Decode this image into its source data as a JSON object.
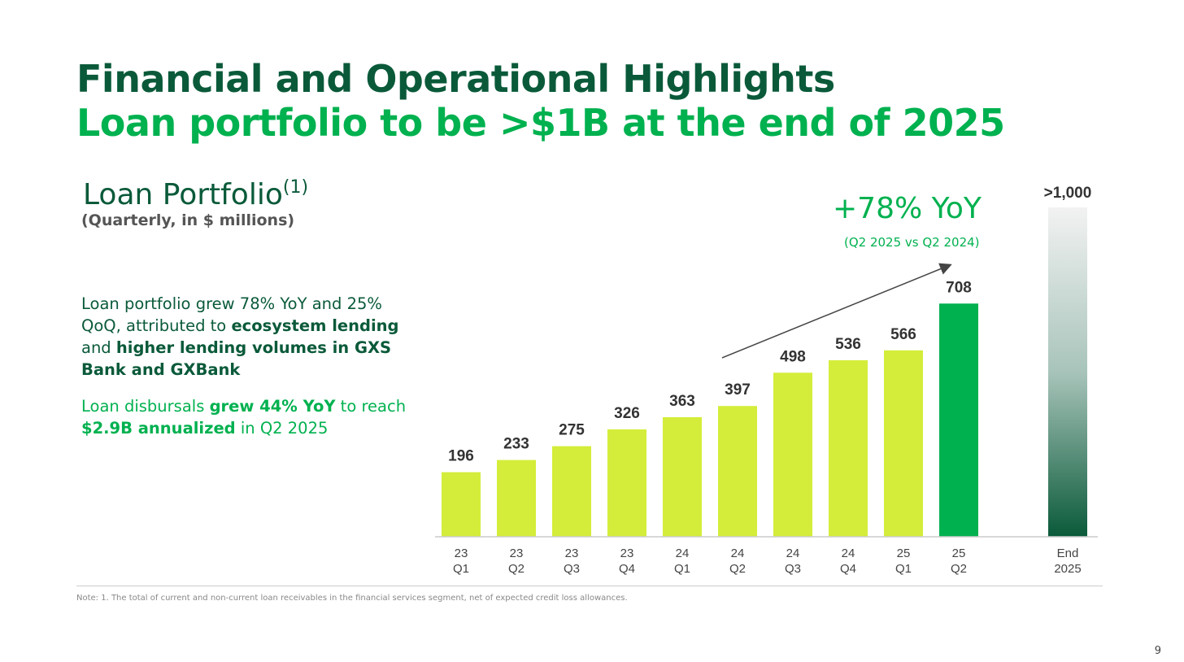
{
  "title": "Financial and Operational Highlights",
  "subtitle": "Loan portfolio to be >$1B at the end of 2025",
  "section": {
    "title": "Loan Portfolio",
    "footnote_ref": "(1)",
    "units": "(Quarterly, in $ millions)"
  },
  "bullets": [
    [
      {
        "t": "Loan portfolio grew 78% YoY and 25% QoQ, attributed to ",
        "b": false
      },
      {
        "t": "ecosystem lending",
        "b": true
      },
      {
        "t": " and ",
        "b": false
      },
      {
        "t": "higher lending volumes in GXS Bank and GXBank",
        "b": true
      }
    ],
    [
      {
        "t": "Loan disbursals ",
        "b": false
      },
      {
        "t": "grew 44% YoY",
        "b": true
      },
      {
        "t": " to reach ",
        "b": false
      },
      {
        "t": "$2.9B annualized",
        "b": true
      },
      {
        "t": " in Q2 2025",
        "b": false
      }
    ]
  ],
  "callout": {
    "headline": "+78% YoY",
    "detail": "(Q2 2025 vs Q2 2024)"
  },
  "note": "Note: 1. The total of current and non-current loan receivables in the financial services segment, net of expected credit loss allowances.",
  "page_number": "9",
  "chart_data": {
    "type": "bar",
    "title": "Loan Portfolio",
    "ylabel": "$ millions",
    "ylim": [
      0,
      1000
    ],
    "grid": false,
    "categories": [
      [
        "23",
        "Q1"
      ],
      [
        "23",
        "Q2"
      ],
      [
        "23",
        "Q3"
      ],
      [
        "23",
        "Q4"
      ],
      [
        "24",
        "Q1"
      ],
      [
        "24",
        "Q2"
      ],
      [
        "24",
        "Q3"
      ],
      [
        "24",
        "Q4"
      ],
      [
        "25",
        "Q1"
      ],
      [
        "25",
        "Q2"
      ],
      [
        "End",
        "2025"
      ]
    ],
    "values": [
      196,
      233,
      275,
      326,
      363,
      397,
      498,
      536,
      566,
      708,
      1000
    ],
    "labels": [
      "196",
      "233",
      "275",
      "326",
      "363",
      "397",
      "498",
      "536",
      "566",
      "708",
      ">1,000"
    ],
    "colors": {
      "historical": "#d4ed3a",
      "current": "#00b14f",
      "target_top": "#f2f2f2",
      "target_bottom": "#0a5a3a"
    }
  }
}
